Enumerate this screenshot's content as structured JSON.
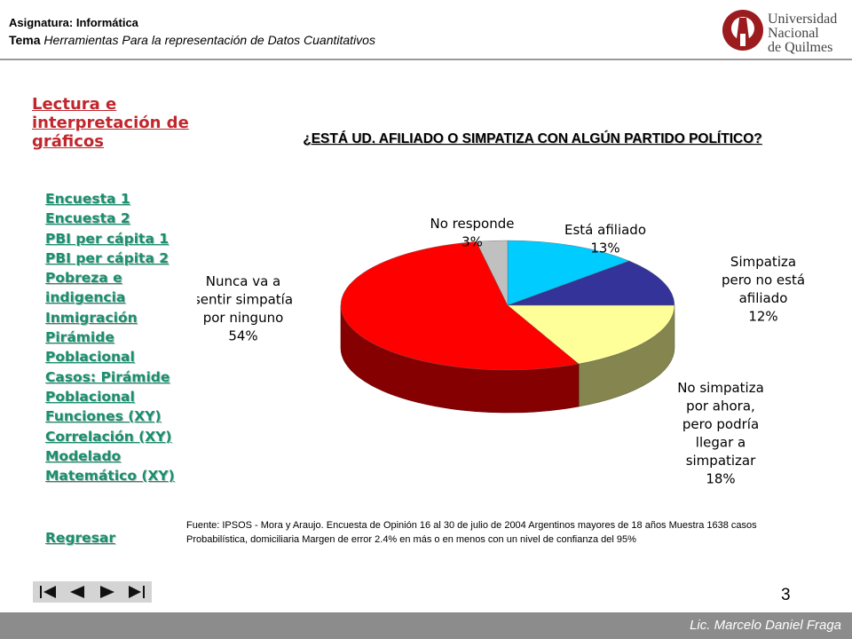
{
  "header": {
    "subject_label": "Asignatura: Informática",
    "subject_colon": ":",
    "topic_label": "Tema",
    "topic_text": " Herramientas Para la representación de Datos Cuantitativos",
    "logo_line1": "Universidad",
    "logo_line2": "Nacional",
    "logo_line3": "de Quilmes"
  },
  "sidebar": {
    "title": "Lectura e interpretación de gráficos",
    "links": [
      {
        "label": "Encuesta 1"
      },
      {
        "label": "Encuesta 2"
      },
      {
        "label": "PBI per cápita 1"
      },
      {
        "label": "PBI per cápita 2"
      },
      {
        "label": "Pobreza e\nindigencia"
      },
      {
        "label": "Inmigración"
      },
      {
        "label": "Pirámide\nPoblacional"
      },
      {
        "label": "Casos: Pirámide\nPoblacional"
      },
      {
        "label": "Funciones (XY)"
      },
      {
        "label": "Correlación (XY)"
      },
      {
        "label": "Modelado\nMatemático (XY)"
      }
    ],
    "back_label": "Regresar"
  },
  "chart_data": {
    "type": "pie",
    "title": "¿ESTÁ UD. AFILIADO O SIMPATIZA CON ALGÚN PARTIDO POLÍTICO?",
    "slices": [
      {
        "label": "Está afiliado",
        "value": 13,
        "value_label": "13%",
        "color": "#00ccff"
      },
      {
        "label": "Simpatiza pero no está afiliado",
        "value": 12,
        "value_label": "12%",
        "color": "#333399"
      },
      {
        "label": "No simpatiza por ahora, pero podría llegar a simpatizar",
        "value": 18,
        "value_label": "18%",
        "color": "#ffff99"
      },
      {
        "label": "Nunca va a sentir simpatía por ninguno",
        "value": 54,
        "value_label": "54%",
        "color": "#ff0000"
      },
      {
        "label": "No responde",
        "value": 3,
        "value_label": "3%",
        "color": "#c0c0c0"
      }
    ],
    "legend": "none",
    "three_d": true
  },
  "source": {
    "text": "Fuente: IPSOS - Mora y Araujo. Encuesta de Opinión 16 al 30 de julio de 2004 Argentinos mayores de 18 años Muestra 1638 casos Probabilística, domiciliaria Margen de error 2.4% en más o en menos con un nivel de confianza del 95%"
  },
  "navigation": {
    "first_icon": "skip-first-icon",
    "prev_icon": "prev-icon",
    "next_icon": "next-icon",
    "last_icon": "skip-last-icon"
  },
  "page_number": "3",
  "footer": {
    "author": "Lic. Marcelo Daniel Fraga"
  }
}
